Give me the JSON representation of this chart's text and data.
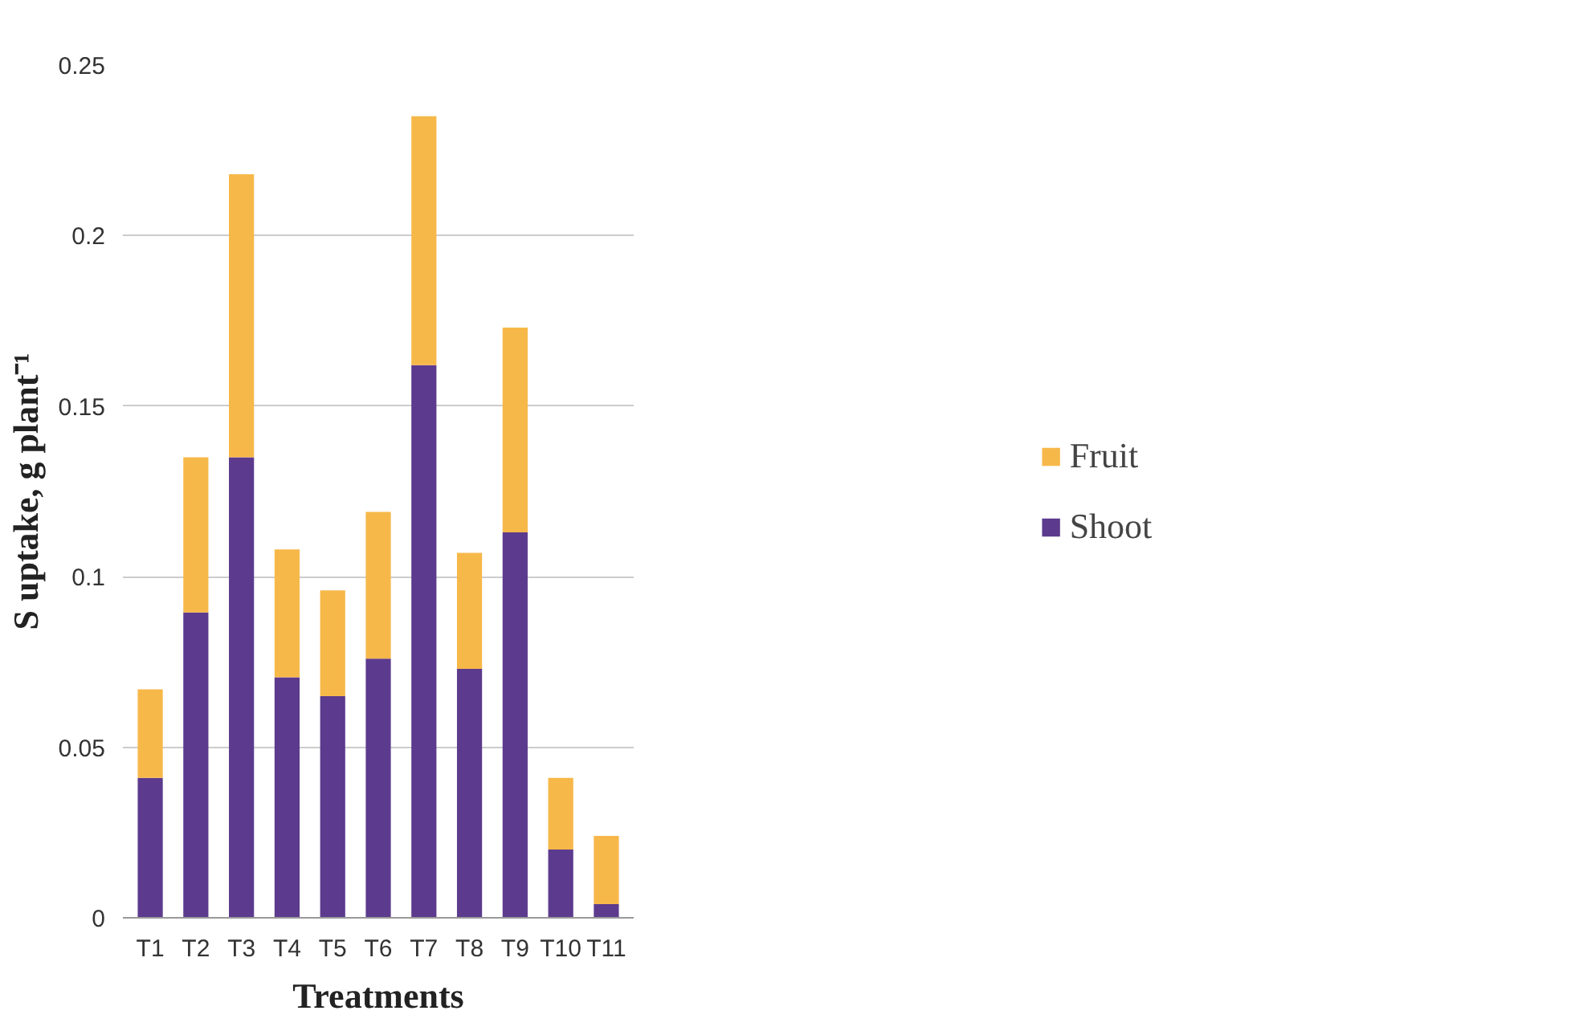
{
  "chart_data": {
    "type": "bar",
    "stacked": true,
    "xlabel": "Treatments",
    "ylabel": "S uptake, g plant⁻¹",
    "categories": [
      "T1",
      "T2",
      "T3",
      "T4",
      "T5",
      "T6",
      "T7",
      "T8",
      "T9",
      "T10",
      "T11"
    ],
    "series": [
      {
        "name": "Shoot",
        "color": "#5c3b8e",
        "values": [
          0.041,
          0.0895,
          0.135,
          0.0705,
          0.065,
          0.076,
          0.162,
          0.073,
          0.113,
          0.02,
          0.004
        ]
      },
      {
        "name": "Fruit",
        "color": "#f7b84a",
        "values": [
          0.026,
          0.0455,
          0.083,
          0.0375,
          0.031,
          0.043,
          0.073,
          0.034,
          0.06,
          0.021,
          0.02
        ]
      }
    ],
    "ylim": [
      0,
      0.25
    ],
    "yticks": [
      {
        "value": 0,
        "label": "0"
      },
      0.05,
      {
        "value": 0.1,
        "label": "0.1"
      },
      0.15,
      {
        "value": 0.2,
        "label": "0.2"
      },
      0.25
    ],
    "grid": "y",
    "legend": "right"
  }
}
